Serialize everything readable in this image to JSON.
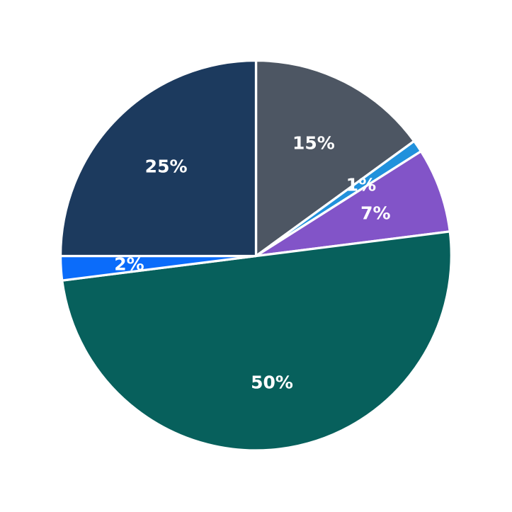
{
  "chart_data": {
    "type": "pie",
    "title": "",
    "legend": "none",
    "background": "#ffffff",
    "center": {
      "x": 361.5,
      "y": 361.5
    },
    "radius_px": 276,
    "start_angle_deg_from_top": 0,
    "direction": "clockwise",
    "wedge_border_color": "#ffffff",
    "wedge_border_width_px": 3.3,
    "label_color": "#ffffff",
    "label_font_size_px": 25,
    "label_distance_fraction": 0.65,
    "slices": [
      {
        "label": "15%",
        "value": 15,
        "color": "#4d5663",
        "name": "slice-gray"
      },
      {
        "label": "1%",
        "value": 1,
        "color": "#2191dc",
        "name": "slice-lightblue"
      },
      {
        "label": "7%",
        "value": 7,
        "color": "#8254c8",
        "name": "slice-purple"
      },
      {
        "label": "50%",
        "value": 50,
        "color": "#07605c",
        "name": "slice-teal"
      },
      {
        "label": "2%",
        "value": 2,
        "color": "#0b6cfa",
        "name": "slice-blue"
      },
      {
        "label": "25%",
        "value": 25,
        "color": "#1c3a5e",
        "name": "slice-navy"
      }
    ]
  }
}
